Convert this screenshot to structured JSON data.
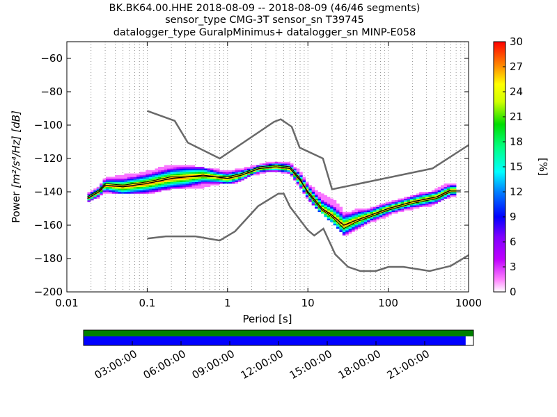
{
  "title_lines": [
    "BK.BK64.00.HHE   2018-08-09 -- 2018-08-09  (46/46 segments)",
    "sensor_type CMG-3T sensor_sn T39745",
    "datalogger_type GuralpMinimus+ datalogger_sn MINP-E058"
  ],
  "chart_data": {
    "type": "heatmap",
    "xlabel": "Period [s]",
    "ylabel": "Power",
    "ylabel_unit": "[m²/s⁴/Hz] [dB]",
    "x_scale": "log",
    "xlim": [
      0.01,
      1000
    ],
    "ylim": [
      -200,
      -50
    ],
    "x_ticks": [
      0.01,
      0.1,
      1,
      10,
      100,
      1000
    ],
    "x_tick_labels": [
      "0.01",
      "0.1",
      "1",
      "10",
      "100",
      "1000"
    ],
    "y_ticks": [
      -200,
      -180,
      -160,
      -140,
      -120,
      -100,
      -80,
      -60
    ],
    "y_tick_labels": [
      "−200",
      "−180",
      "−160",
      "−140",
      "−120",
      "−100",
      "−80",
      "−60"
    ],
    "grid": "dotted vertical",
    "colorbar": {
      "label": "[%]",
      "min": 0,
      "max": 30,
      "ticks": [
        0,
        3,
        6,
        9,
        12,
        15,
        18,
        21,
        24,
        27,
        30
      ],
      "colormap": "pqlx"
    },
    "noise_models": {
      "high": [
        [
          0.1,
          -91.5
        ],
        [
          0.22,
          -97.4
        ],
        [
          0.32,
          -110.5
        ],
        [
          0.8,
          -120
        ],
        [
          3.8,
          -98
        ],
        [
          4.6,
          -96.5
        ],
        [
          6.3,
          -101
        ],
        [
          7.9,
          -113.5
        ],
        [
          15.4,
          -120
        ],
        [
          20,
          -138.5
        ],
        [
          354.8,
          -126
        ],
        [
          1000,
          -112
        ]
      ],
      "low": [
        [
          0.1,
          -168
        ],
        [
          0.17,
          -166.7
        ],
        [
          0.4,
          -166.7
        ],
        [
          0.8,
          -169.2
        ],
        [
          1.24,
          -163.7
        ],
        [
          2.4,
          -148.6
        ],
        [
          4.3,
          -141.1
        ],
        [
          5,
          -141.1
        ],
        [
          6,
          -149
        ],
        [
          10,
          -163
        ],
        [
          12,
          -166.2
        ],
        [
          15.6,
          -162.1
        ],
        [
          21.9,
          -177.5
        ],
        [
          31.6,
          -185
        ],
        [
          45,
          -187.5
        ],
        [
          70,
          -187.5
        ],
        [
          101,
          -185
        ],
        [
          154,
          -185
        ],
        [
          328,
          -187.5
        ],
        [
          600,
          -184.4
        ],
        [
          1000,
          -178
        ]
      ]
    },
    "psd_mode": [
      [
        0.018,
        -144
      ],
      [
        0.025,
        -140
      ],
      [
        0.03,
        -136
      ],
      [
        0.05,
        -137
      ],
      [
        0.1,
        -135
      ],
      [
        0.2,
        -132
      ],
      [
        0.5,
        -130
      ],
      [
        1,
        -132
      ],
      [
        1.5,
        -130
      ],
      [
        2.5,
        -126
      ],
      [
        4,
        -125
      ],
      [
        6,
        -126
      ],
      [
        8,
        -133
      ],
      [
        10,
        -140
      ],
      [
        15,
        -150
      ],
      [
        20,
        -154
      ],
      [
        28,
        -160
      ],
      [
        40,
        -157
      ],
      [
        60,
        -154
      ],
      [
        100,
        -150
      ],
      [
        200,
        -146
      ],
      [
        400,
        -143
      ],
      [
        600,
        -139
      ],
      [
        800,
        -139
      ]
    ],
    "psd_mean": [
      [
        0.018,
        -143
      ],
      [
        0.025,
        -139
      ],
      [
        0.03,
        -135
      ],
      [
        0.05,
        -136
      ],
      [
        0.1,
        -134
      ],
      [
        0.2,
        -131
      ],
      [
        0.5,
        -131
      ],
      [
        1,
        -131
      ],
      [
        1.5,
        -129
      ],
      [
        2.5,
        -125
      ],
      [
        4,
        -124
      ],
      [
        6,
        -125
      ],
      [
        8,
        -132
      ],
      [
        10,
        -141
      ],
      [
        15,
        -151
      ],
      [
        20,
        -155
      ],
      [
        28,
        -162
      ],
      [
        40,
        -158
      ],
      [
        60,
        -155
      ],
      [
        100,
        -151
      ],
      [
        200,
        -147
      ],
      [
        400,
        -144
      ],
      [
        600,
        -140
      ],
      [
        800,
        -140
      ]
    ],
    "density_band": [
      {
        "p": 0.018,
        "lo": -146,
        "hi": -141
      },
      {
        "p": 0.025,
        "lo": -143,
        "hi": -137
      },
      {
        "p": 0.03,
        "lo": -140,
        "hi": -132
      },
      {
        "p": 0.05,
        "lo": -141,
        "hi": -130
      },
      {
        "p": 0.08,
        "lo": -141,
        "hi": -129
      },
      {
        "p": 0.12,
        "lo": -140,
        "hi": -127
      },
      {
        "p": 0.2,
        "lo": -138,
        "hi": -124
      },
      {
        "p": 0.3,
        "lo": -138,
        "hi": -124
      },
      {
        "p": 0.5,
        "lo": -137,
        "hi": -126
      },
      {
        "p": 0.8,
        "lo": -135,
        "hi": -127
      },
      {
        "p": 1.2,
        "lo": -135,
        "hi": -127
      },
      {
        "p": 2,
        "lo": -130,
        "hi": -125
      },
      {
        "p": 3,
        "lo": -128,
        "hi": -123
      },
      {
        "p": 4.5,
        "lo": -128,
        "hi": -122
      },
      {
        "p": 6,
        "lo": -129,
        "hi": -123
      },
      {
        "p": 8,
        "lo": -137,
        "hi": -128
      },
      {
        "p": 10,
        "lo": -144,
        "hi": -135
      },
      {
        "p": 13,
        "lo": -150,
        "hi": -140
      },
      {
        "p": 17,
        "lo": -155,
        "hi": -143
      },
      {
        "p": 22,
        "lo": -160,
        "hi": -146
      },
      {
        "p": 28,
        "lo": -166,
        "hi": -152
      },
      {
        "p": 35,
        "lo": -164,
        "hi": -152
      },
      {
        "p": 45,
        "lo": -161,
        "hi": -150
      },
      {
        "p": 60,
        "lo": -158,
        "hi": -150
      },
      {
        "p": 80,
        "lo": -156,
        "hi": -148
      },
      {
        "p": 110,
        "lo": -153,
        "hi": -146
      },
      {
        "p": 160,
        "lo": -151,
        "hi": -144
      },
      {
        "p": 250,
        "lo": -149,
        "hi": -141
      },
      {
        "p": 350,
        "lo": -148,
        "hi": -140
      },
      {
        "p": 500,
        "lo": -144,
        "hi": -136
      },
      {
        "p": 700,
        "lo": -142,
        "hi": -135
      }
    ]
  },
  "timeline": {
    "tick_labels": [
      "03:00:00",
      "06:00:00",
      "09:00:00",
      "12:00:00",
      "15:00:00",
      "18:00:00",
      "21:00:00"
    ],
    "tick_hours": [
      3,
      6,
      9,
      12,
      15,
      18,
      21
    ],
    "data_coverage_fraction": 1.0,
    "psd_coverage_fraction": 0.98,
    "colors": {
      "data": "#008000",
      "psd": "#0000ff"
    }
  },
  "colors": {
    "noise_model": "#696969",
    "mode_line": "#000000",
    "grid": "#777777"
  }
}
